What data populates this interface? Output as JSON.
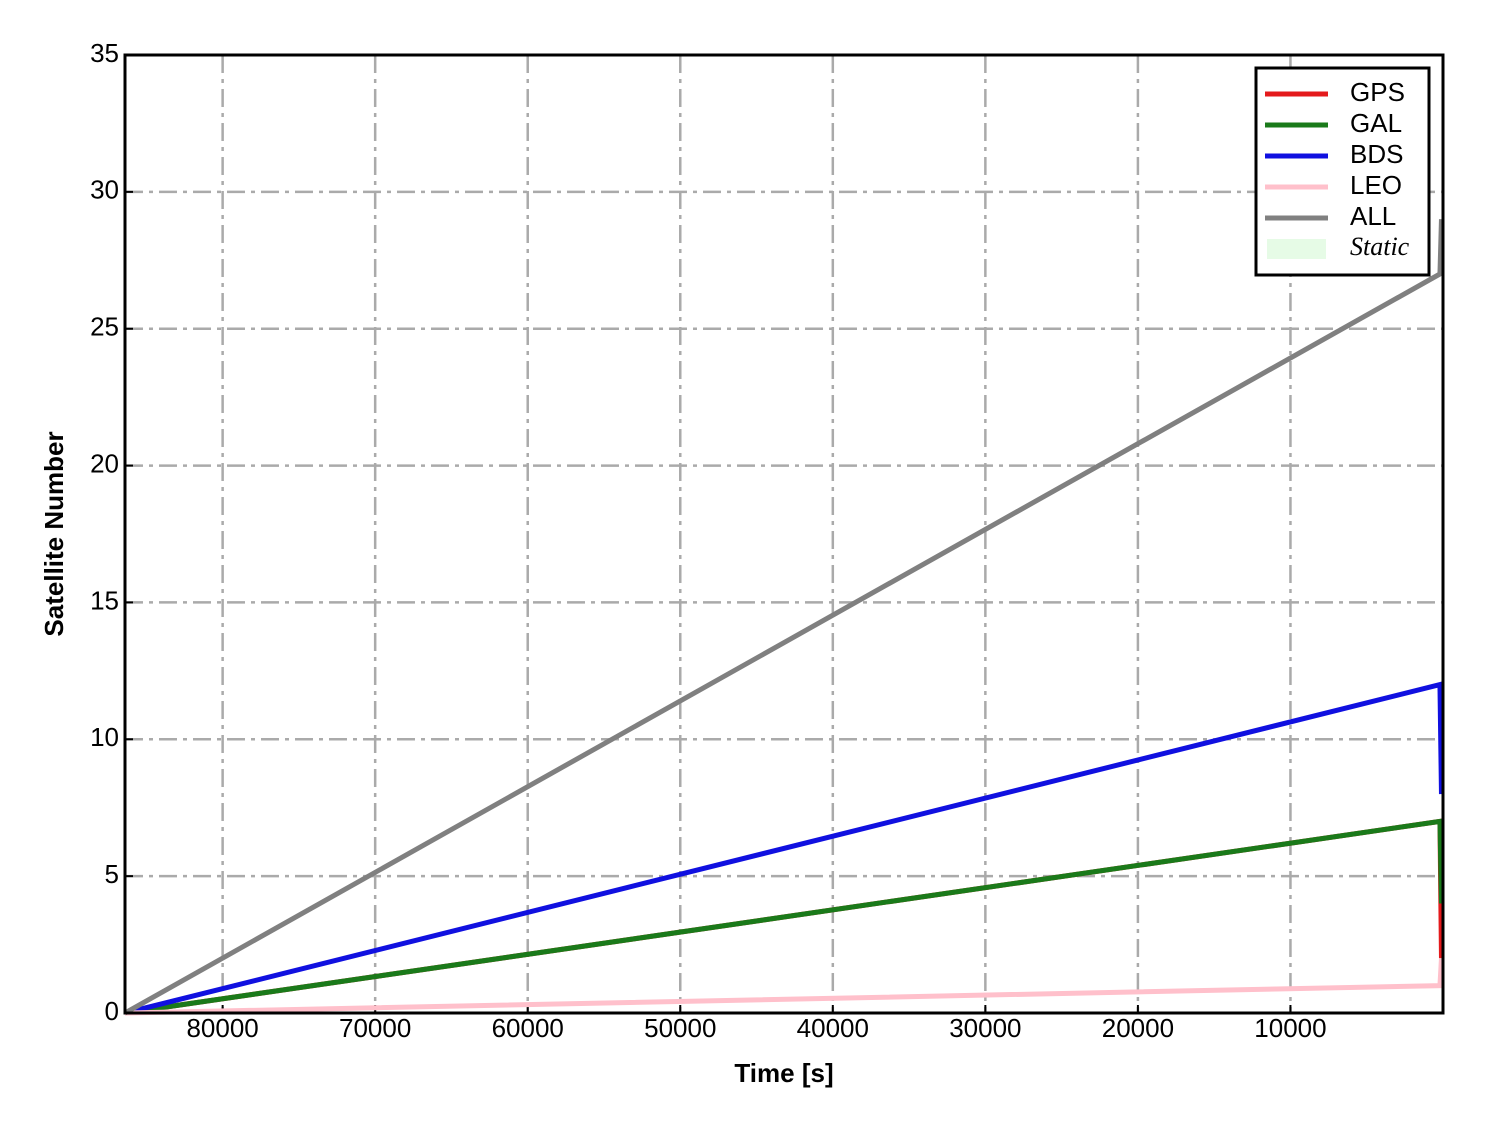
{
  "chart_data": {
    "type": "line",
    "xlabel": "Time [s]",
    "ylabel": "Satellite Number",
    "x": [
      86400,
      200,
      100
    ],
    "series": [
      {
        "name": "GPS",
        "color": "#e41a1c",
        "values": [
          0,
          7,
          2
        ]
      },
      {
        "name": "GAL",
        "color": "#1a7a1a",
        "values": [
          0,
          7,
          4
        ]
      },
      {
        "name": "BDS",
        "color": "#1010e0",
        "values": [
          0,
          12,
          8
        ]
      },
      {
        "name": "LEO",
        "color": "#ffc0cb",
        "values": [
          0,
          1,
          2
        ]
      },
      {
        "name": "ALL",
        "color": "#808080",
        "values": [
          0,
          27,
          29
        ]
      }
    ],
    "legend_patches": [
      {
        "name": "Static",
        "color": "#e6fbe6"
      }
    ],
    "xlim": [
      86400,
      0
    ],
    "xticks": [
      80000,
      70000,
      60000,
      50000,
      40000,
      30000,
      20000,
      10000
    ],
    "ylim": [
      0,
      35
    ],
    "yticks": [
      0,
      5,
      10,
      15,
      20,
      25,
      30,
      35
    ],
    "grid": true,
    "legend": "upper right"
  }
}
